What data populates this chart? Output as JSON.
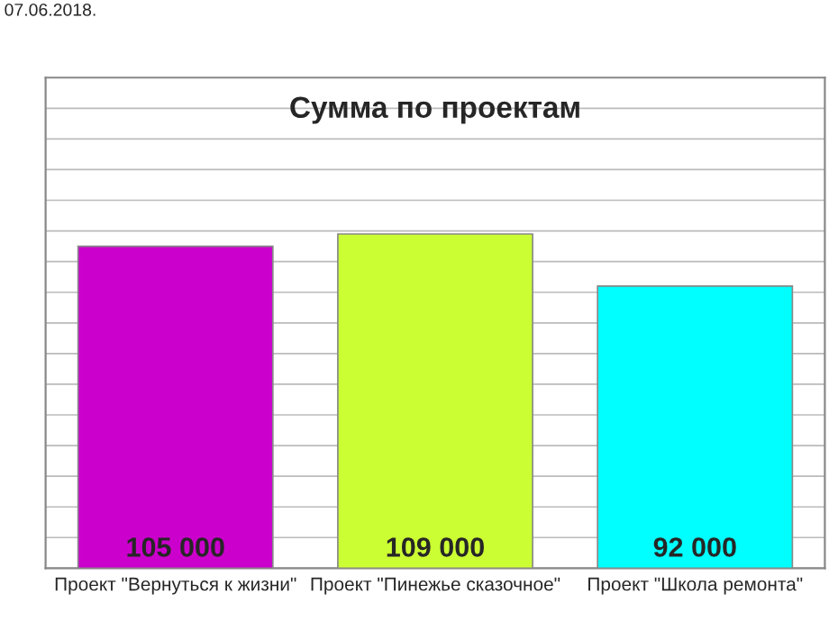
{
  "chart_data": {
    "type": "bar",
    "title": "Сумма по проектам",
    "annotations": [
      "07.06.2018."
    ],
    "categories": [
      "Проект \"Вернуться к жизни\"",
      "Проект \"Пинежье сказочное\"",
      "Проект \"Школа ремонта\""
    ],
    "values": [
      105000,
      109000,
      92000
    ],
    "colors": [
      "#cc00cc",
      "#ccff33",
      "#00ffff"
    ],
    "value_labels": [
      "105 000",
      "109 000",
      "92 000"
    ],
    "ylim": [
      0,
      160000
    ],
    "yticks": [
      {
        "value": 0,
        "label": null
      },
      {
        "value": 10000,
        "label": null
      },
      {
        "value": 20000,
        "label": null
      },
      {
        "value": 30000,
        "label": null
      },
      {
        "value": 40000,
        "label": null
      },
      {
        "value": 50000,
        "label": null
      },
      {
        "value": 60000,
        "label": null
      },
      {
        "value": 70000,
        "label": null
      },
      {
        "value": 80000,
        "label": null
      },
      {
        "value": 90000,
        "label": null
      },
      {
        "value": 100000,
        "label": null
      },
      {
        "value": 110000,
        "label": null
      },
      {
        "value": 120000,
        "label": null
      },
      {
        "value": 130000,
        "label": null
      },
      {
        "value": 140000,
        "label": null
      },
      {
        "value": 150000,
        "label": null
      },
      {
        "value": 160000,
        "label": null
      }
    ],
    "grid": "y",
    "tick_labels": "x"
  }
}
